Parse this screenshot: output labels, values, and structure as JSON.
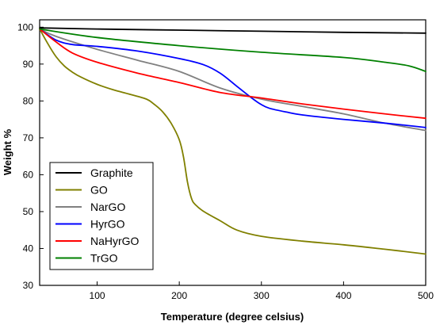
{
  "chart_data": {
    "type": "line",
    "xlabel": "Temperature (degree celsius)",
    "ylabel": "Weight %",
    "xlim": [
      30,
      500
    ],
    "ylim": [
      30,
      102
    ],
    "xticks": [
      100,
      200,
      300,
      400,
      500
    ],
    "yticks": [
      30,
      40,
      50,
      60,
      70,
      80,
      90,
      100
    ],
    "grid": false,
    "legend_position": "bottom-left",
    "series": [
      {
        "name": "Graphite",
        "color": "#000000",
        "x": [
          30,
          100,
          200,
          300,
          400,
          500
        ],
        "y": [
          99.8,
          99.5,
          99.2,
          98.9,
          98.6,
          98.4
        ]
      },
      {
        "name": "GO",
        "color": "#808000",
        "x": [
          30,
          40,
          50,
          60,
          70,
          80,
          100,
          120,
          140,
          160,
          170,
          180,
          190,
          200,
          205,
          210,
          215,
          220,
          230,
          250,
          270,
          300,
          350,
          400,
          450,
          500
        ],
        "y": [
          99.5,
          95.5,
          92.0,
          89.5,
          87.8,
          86.5,
          84.5,
          83.0,
          81.8,
          80.5,
          79.0,
          77.0,
          74.0,
          69.5,
          65.0,
          58.0,
          53.5,
          51.8,
          50.0,
          47.5,
          45.0,
          43.3,
          42.0,
          41.0,
          39.8,
          38.5
        ]
      },
      {
        "name": "NarGO",
        "color": "#808080",
        "x": [
          30,
          50,
          100,
          150,
          200,
          250,
          300,
          350,
          400,
          450,
          500
        ],
        "y": [
          99.5,
          97.5,
          94.0,
          91.0,
          88.0,
          83.5,
          80.5,
          78.5,
          76.5,
          74.0,
          72.0
        ]
      },
      {
        "name": "HyrGO",
        "color": "#0000ff",
        "x": [
          30,
          50,
          70,
          100,
          150,
          200,
          230,
          250,
          270,
          290,
          300,
          310,
          330,
          350,
          400,
          450,
          500
        ],
        "y": [
          99.5,
          96.5,
          95.3,
          94.8,
          93.5,
          91.5,
          89.8,
          87.5,
          84.0,
          80.5,
          79.0,
          78.0,
          77.0,
          76.2,
          75.0,
          74.0,
          72.8
        ]
      },
      {
        "name": "NaHyrGO",
        "color": "#ff0000",
        "x": [
          30,
          50,
          70,
          100,
          150,
          200,
          250,
          300,
          350,
          400,
          450,
          500
        ],
        "y": [
          99.5,
          96.0,
          93.0,
          90.5,
          87.5,
          85.0,
          82.3,
          80.8,
          79.2,
          77.8,
          76.5,
          75.3
        ]
      },
      {
        "name": "TrGO",
        "color": "#008000",
        "x": [
          30,
          100,
          200,
          300,
          400,
          450,
          480,
          500
        ],
        "y": [
          99.5,
          97.2,
          95.0,
          93.2,
          91.8,
          90.5,
          89.5,
          88.0
        ]
      }
    ]
  }
}
